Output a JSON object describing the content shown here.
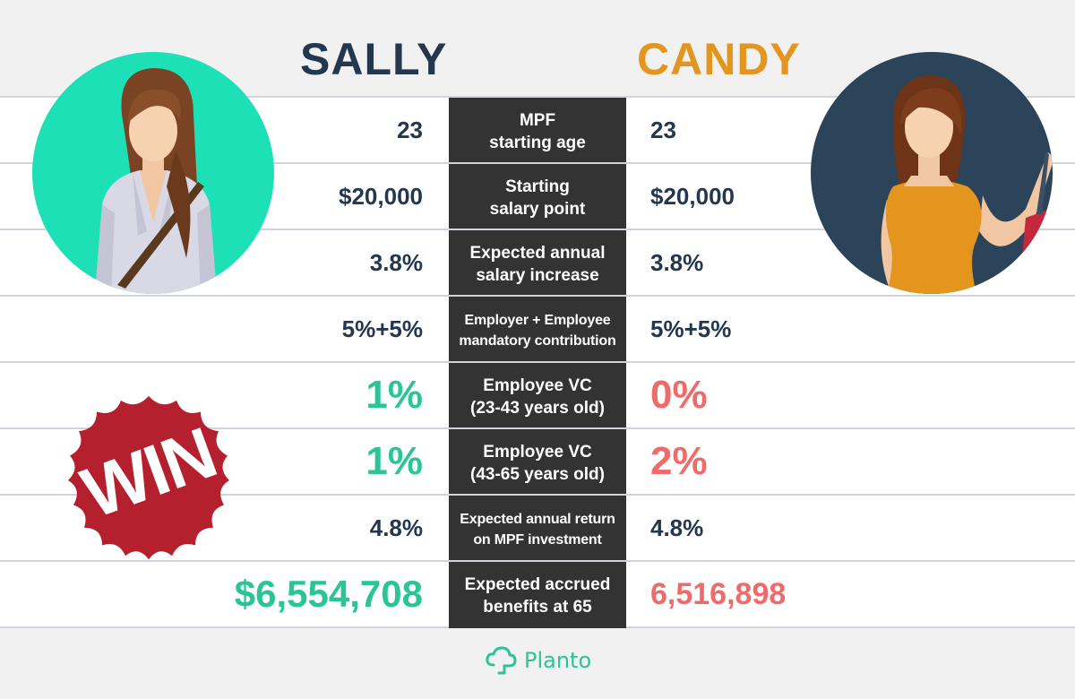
{
  "header": {
    "left_name": "SALLY",
    "right_name": "CANDY"
  },
  "rows": [
    {
      "label_line1": "MPF",
      "label_line2": "starting age",
      "sally": "23",
      "candy": "23"
    },
    {
      "label_line1": "Starting",
      "label_line2": "salary point",
      "sally": "$20,000",
      "candy": "$20,000"
    },
    {
      "label_line1": "Expected annual",
      "label_line2": "salary increase",
      "sally": "3.8%",
      "candy": "3.8%"
    },
    {
      "label_line1": "Employer + Employee",
      "label_line2": "mandatory contribution",
      "sally": "5%+5%",
      "candy": "5%+5%"
    },
    {
      "label_line1": "Employee VC",
      "label_line2": "(23-43 years old)",
      "sally": "1%",
      "candy": "0%"
    },
    {
      "label_line1": "Employee VC",
      "label_line2": "(43-65 years old)",
      "sally": "1%",
      "candy": "2%"
    },
    {
      "label_line1": "Expected annual return",
      "label_line2": "on MPF investment",
      "sally": "4.8%",
      "candy": "4.8%"
    },
    {
      "label_line1": "Expected accrued",
      "label_line2": "benefits at 65",
      "sally": "$6,554,708",
      "candy": "6,516,898"
    }
  ],
  "badge": {
    "text": "WIN"
  },
  "footer": {
    "brand": "Planto"
  },
  "icons": {
    "avatar_left": "woman-avatar-icon",
    "avatar_right": "woman-avatar-icon",
    "badge": "seal-badge-icon",
    "logo": "cloud-tree-icon"
  },
  "colors": {
    "navy": "#23374e",
    "orange": "#e3951e",
    "green": "#2bc497",
    "red": "#f06a6a",
    "center_bg": "#333333",
    "badge": "#b5202e"
  }
}
